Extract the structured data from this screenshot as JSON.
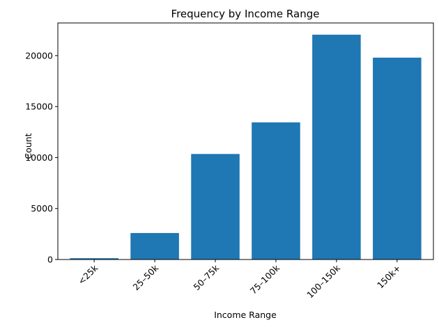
{
  "chart_data": {
    "type": "bar",
    "title": "Frequency by Income Range",
    "xlabel": "Income Range",
    "ylabel": "Count",
    "categories": [
      "<25k",
      "25–50k",
      "50–75k",
      "75–100k",
      "100–150k",
      "150k+"
    ],
    "values": [
      130,
      2600,
      10350,
      13450,
      22050,
      19800
    ],
    "ylim": [
      0,
      23200
    ],
    "yticks": [
      0,
      5000,
      10000,
      15000,
      20000
    ],
    "bar_color": "#1f77b4",
    "grid": false,
    "xtick_rotation_deg": 45
  }
}
